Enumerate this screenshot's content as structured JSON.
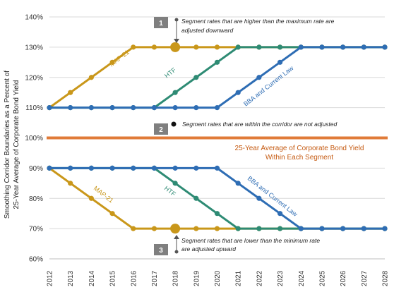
{
  "chart_data": {
    "type": "line",
    "ylabel_line1": "Smoothing Corridor Boundaries as a Percent of",
    "ylabel_line2": "25-Year Average of Corporate Bond Yield",
    "ylim": [
      60,
      140
    ],
    "yticks": [
      "60%",
      "70%",
      "80%",
      "90%",
      "100%",
      "110%",
      "120%",
      "130%",
      "140%"
    ],
    "x": [
      "2012",
      "2013",
      "2014",
      "2015",
      "2016",
      "2017",
      "2018",
      "2019",
      "2020",
      "2021",
      "2022",
      "2023",
      "2024",
      "2025",
      "2026",
      "2027",
      "2028"
    ],
    "grid": true,
    "series": [
      {
        "name": "MAP-21",
        "color": "#C9971A",
        "values": [
          110,
          115,
          120,
          125,
          130,
          130,
          130,
          130,
          130,
          130,
          130,
          130,
          130,
          130,
          130,
          130,
          130
        ]
      },
      {
        "name": "HTF",
        "color": "#2E8B74",
        "values": [
          110,
          110,
          110,
          110,
          110,
          110,
          115,
          120,
          125,
          130,
          130,
          130,
          130,
          130,
          130,
          130,
          130
        ]
      },
      {
        "name": "BBA and Current Law",
        "color": "#2E6DB4",
        "values": [
          110,
          110,
          110,
          110,
          110,
          110,
          110,
          110,
          110,
          115,
          120,
          125,
          130,
          130,
          130,
          130,
          130
        ]
      },
      {
        "name": "MAP-21",
        "color": "#C9971A",
        "values": [
          90,
          85,
          80,
          75,
          70,
          70,
          70,
          70,
          70,
          70,
          70,
          70,
          70,
          70,
          70,
          70,
          70
        ]
      },
      {
        "name": "HTF",
        "color": "#2E8B74",
        "values": [
          90,
          90,
          90,
          90,
          90,
          90,
          85,
          80,
          75,
          70,
          70,
          70,
          70,
          70,
          70,
          70,
          70
        ]
      },
      {
        "name": "BBA and Current Law",
        "color": "#2E6DB4",
        "values": [
          90,
          90,
          90,
          90,
          90,
          90,
          90,
          90,
          90,
          85,
          80,
          75,
          70,
          70,
          70,
          70,
          70
        ]
      }
    ],
    "average_line": {
      "value": 100,
      "color": "#E07B39",
      "label_line1": "25-Year Average of Corporate Bond Yield",
      "label_line2": "Within Each Segment"
    },
    "annotations": [
      {
        "number": "1",
        "line1": "Segment rates that are higher than the maximum rate are",
        "line2": "adjusted downward"
      },
      {
        "number": "2",
        "line1": "Segment rates that are within the corridor are not adjusted",
        "line2": ""
      },
      {
        "number": "3",
        "line1": "Segment rates that are lower than the minimum rate",
        "line2": "are adjusted upward"
      }
    ],
    "example_points": [
      {
        "x": "2018",
        "y": 130
      },
      {
        "x": "2018",
        "y": 70
      }
    ]
  }
}
